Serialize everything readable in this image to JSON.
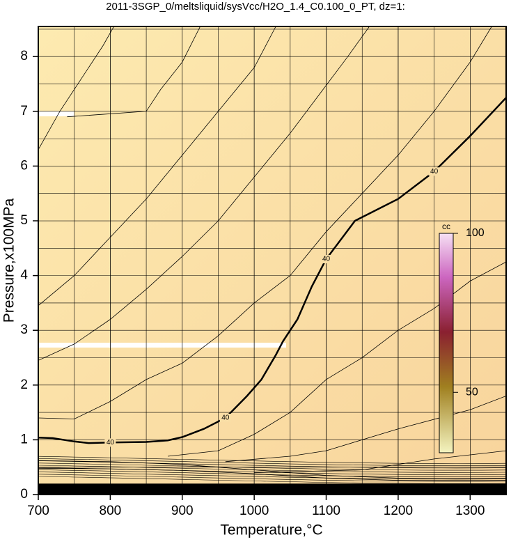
{
  "chart_data": {
    "type": "contour",
    "title": "2011-3SGP_0/meltsliquid/sysVcc/H2O_1.4_C0.100_0_PT, dz=1:",
    "x_label": "Temperature,°C",
    "y_label": "Pressure,x100MPa",
    "xlim": [
      700,
      1350
    ],
    "xticks": [
      700,
      800,
      900,
      1000,
      1100,
      1200,
      1300
    ],
    "ylim": [
      0,
      8.55
    ],
    "yticks": [
      0,
      1,
      2,
      3,
      4,
      5,
      6,
      7,
      8
    ],
    "grid": true,
    "colorbar": {
      "label": "cc",
      "clim": [
        31,
        100
      ],
      "ticks": [
        50,
        100
      ]
    },
    "series": [
      {
        "level": 40,
        "color": "#000000",
        "x": [
          700,
          720,
          750,
          770,
          800,
          850,
          880,
          900,
          930,
          960,
          990,
          1010,
          1030,
          1040,
          1060,
          1080,
          1100,
          1140,
          1200,
          1250,
          1300,
          1350
        ],
        "y": [
          1.04,
          1.03,
          0.97,
          0.94,
          0.95,
          0.96,
          0.99,
          1.05,
          1.2,
          1.4,
          1.8,
          2.1,
          2.55,
          2.8,
          3.2,
          3.8,
          4.3,
          5.0,
          5.4,
          5.9,
          6.55,
          7.25
        ]
      },
      {
        "color": "#000000",
        "x": [
          700,
          750,
          800,
          850,
          900,
          950,
          1000,
          1030
        ],
        "y": [
          3.45,
          4.0,
          4.7,
          5.4,
          6.2,
          7.0,
          7.8,
          8.55
        ]
      },
      {
        "color": "#000000",
        "x": [
          700,
          750,
          800,
          850,
          900,
          950,
          1000,
          1050,
          1090,
          1130,
          1160
        ],
        "y": [
          2.45,
          2.75,
          3.2,
          3.75,
          4.35,
          5.0,
          5.8,
          6.6,
          7.3,
          8.0,
          8.55
        ]
      },
      {
        "color": "#000000",
        "x": [
          700,
          750,
          800,
          850,
          900,
          950,
          1000,
          1050,
          1100,
          1150,
          1200,
          1250,
          1300,
          1330
        ],
        "y": [
          1.4,
          1.38,
          1.7,
          2.1,
          2.4,
          2.9,
          3.5,
          4.0,
          4.8,
          5.5,
          6.2,
          7.0,
          7.9,
          8.55
        ]
      },
      {
        "color": "#000000",
        "x": [
          880,
          950,
          1000,
          1050,
          1100,
          1150,
          1200,
          1250,
          1300,
          1350
        ],
        "y": [
          0.7,
          0.8,
          1.1,
          1.5,
          2.1,
          2.5,
          3.0,
          3.4,
          3.9,
          4.25
        ]
      },
      {
        "color": "#000000",
        "x": [
          960,
          1050,
          1100,
          1200,
          1300,
          1350
        ],
        "y": [
          0.6,
          0.7,
          0.8,
          1.2,
          1.55,
          1.8
        ]
      },
      {
        "color": "#000000",
        "x": [
          1000,
          1150,
          1250,
          1350
        ],
        "y": [
          0.4,
          0.45,
          0.65,
          0.8
        ]
      },
      {
        "color": "#000000",
        "x": [
          700,
          730,
          760,
          790,
          805
        ],
        "y": [
          6.3,
          7.0,
          7.6,
          8.2,
          8.55
        ]
      },
      {
        "color": "#000000",
        "x": [
          740,
          850,
          870,
          900,
          925
        ],
        "y": [
          6.9,
          7.0,
          7.4,
          7.9,
          8.55
        ]
      },
      {
        "color": "#000000",
        "x": [
          700,
          800,
          900,
          1000,
          1100,
          1200,
          1350
        ],
        "y": [
          0.62,
          0.6,
          0.55,
          0.45,
          0.35,
          0.3,
          0.3
        ]
      },
      {
        "color": "#000000",
        "x": [
          700,
          800,
          900,
          1000,
          1100,
          1200,
          1350
        ],
        "y": [
          0.48,
          0.47,
          0.44,
          0.38,
          0.3,
          0.26,
          0.26
        ]
      }
    ]
  }
}
